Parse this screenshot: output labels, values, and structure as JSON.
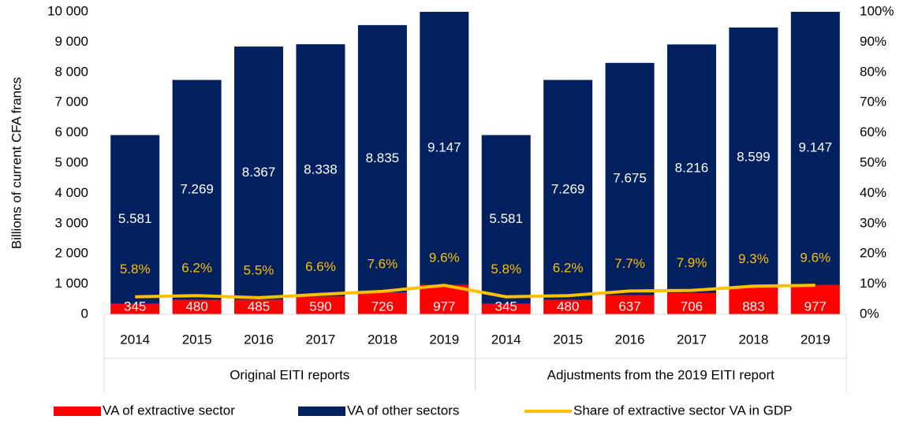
{
  "chart_data": {
    "type": "stacked-bar-line",
    "ylabel": "Billions of current CFA francs",
    "categories": [
      "2014",
      "2015",
      "2016",
      "2017",
      "2018",
      "2019",
      "2014",
      "2015",
      "2016",
      "2017",
      "2018",
      "2019"
    ],
    "category_groups": [
      "Original EITI reports",
      "Adjustments from the 2019 EITI report"
    ],
    "series": [
      {
        "name": "VA of extractive sector",
        "color": "#ff0000",
        "values": [
          345,
          480,
          485,
          590,
          726,
          977,
          345,
          480,
          637,
          706,
          883,
          977
        ]
      },
      {
        "name": "VA of other sectors",
        "color": "#002060",
        "values": [
          5581,
          7269,
          8367,
          8338,
          8835,
          9147,
          5581,
          7269,
          7675,
          8216,
          8599,
          9147
        ],
        "value_labels": [
          "5.581",
          "7.269",
          "8.367",
          "8.338",
          "8.835",
          "9.147",
          "5.581",
          "7.269",
          "7.675",
          "8.216",
          "8.599",
          "9.147"
        ]
      },
      {
        "name": "Share of extractive sector VA in GDP",
        "color": "#ffc000",
        "axis": "y2",
        "line": true,
        "values": [
          5.8,
          6.2,
          5.5,
          6.6,
          7.6,
          9.6,
          5.8,
          6.2,
          7.7,
          7.9,
          9.3,
          9.6
        ],
        "value_labels": [
          "5.8%",
          "6.2%",
          "5.5%",
          "6.6%",
          "7.6%",
          "9.6%",
          "5.8%",
          "6.2%",
          "7.7%",
          "7.9%",
          "9.3%",
          "9.6%"
        ]
      }
    ],
    "ylim": [
      0,
      10000
    ],
    "yticks": [
      0,
      {
        "value": 1000,
        "label": "1 000"
      },
      {
        "value": 2000,
        "label": "2 000"
      },
      {
        "value": 3000,
        "label": "3 000"
      },
      {
        "value": 4000,
        "label": "4 000"
      },
      {
        "value": 5000,
        "label": "5 000"
      },
      {
        "value": 6000,
        "label": "6 000"
      },
      {
        "value": 7000,
        "label": "7 000"
      },
      {
        "value": 8000,
        "label": "8 000"
      },
      {
        "value": 9000,
        "label": "9 000"
      },
      {
        "value": 10000,
        "label": "10 000"
      }
    ],
    "y2lim": [
      0,
      100
    ],
    "y2ticks": [
      {
        "value": 0,
        "label": "0%"
      },
      {
        "value": 10,
        "label": "10%"
      },
      {
        "value": 20,
        "label": "20%"
      },
      {
        "value": 30,
        "label": "30%"
      },
      {
        "value": 40,
        "label": "40%"
      },
      {
        "value": 50,
        "label": "50%"
      },
      {
        "value": 60,
        "label": "60%"
      },
      {
        "value": 70,
        "label": "70%"
      },
      {
        "value": 80,
        "label": "80%"
      },
      {
        "value": 90,
        "label": "90%"
      },
      {
        "value": 100,
        "label": "100%"
      }
    ],
    "legend": "bottom"
  }
}
